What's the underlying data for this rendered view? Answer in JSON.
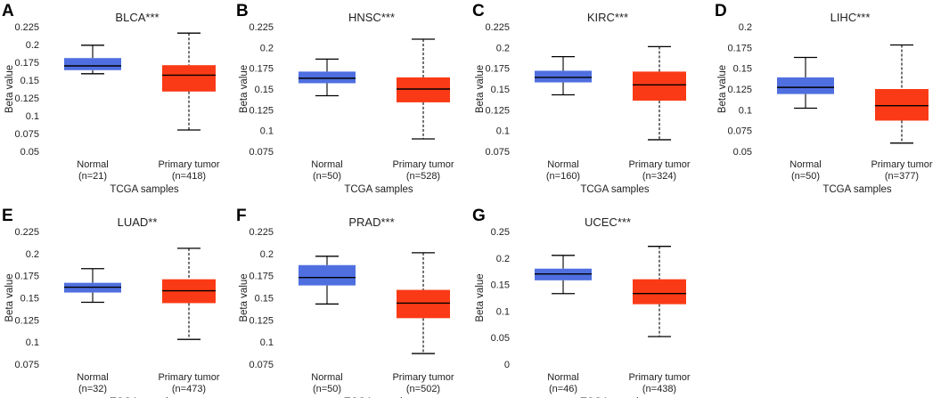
{
  "chart_data": [
    {
      "letter": "A",
      "type": "boxplot",
      "title": "BLCA***",
      "ylabel": "Beta value",
      "xlabel": "TCGA samples",
      "yticks": [
        "0.05",
        "0.075",
        "0.1",
        "0.125",
        "0.15",
        "0.175",
        "0.2",
        "0.225"
      ],
      "ylim": [
        0.05,
        0.225
      ],
      "groups": [
        {
          "name": "Normal",
          "n": "(n=21)",
          "color": "#4f6fe0",
          "min": 0.159,
          "q1": 0.164,
          "median": 0.17,
          "q3": 0.181,
          "max": 0.199
        },
        {
          "name": "Primary tumor",
          "n": "(n=418)",
          "color": "#fa3a16",
          "min": 0.08,
          "q1": 0.134,
          "median": 0.157,
          "q3": 0.171,
          "max": 0.216
        }
      ]
    },
    {
      "letter": "B",
      "type": "boxplot",
      "title": "HNSC***",
      "ylabel": "Beta value",
      "xlabel": "TCGA samples",
      "yticks": [
        "0.075",
        "0.1",
        "0.125",
        "0.15",
        "0.175",
        "0.2",
        "0.225"
      ],
      "ylim": [
        0.075,
        0.225
      ],
      "groups": [
        {
          "name": "Normal",
          "n": "(n=50)",
          "color": "#4f6fe0",
          "min": 0.142,
          "q1": 0.157,
          "median": 0.163,
          "q3": 0.171,
          "max": 0.186
        },
        {
          "name": "Primary tumor",
          "n": "(n=528)",
          "color": "#fa3a16",
          "min": 0.09,
          "q1": 0.134,
          "median": 0.15,
          "q3": 0.164,
          "max": 0.21
        }
      ]
    },
    {
      "letter": "C",
      "type": "boxplot",
      "title": "KIRC***",
      "ylabel": "Beta value",
      "xlabel": "TCGA samples",
      "yticks": [
        "0.075",
        "0.1",
        "0.125",
        "0.15",
        "0.175",
        "0.2",
        "0.225"
      ],
      "ylim": [
        0.075,
        0.225
      ],
      "groups": [
        {
          "name": "Normal",
          "n": "(n=160)",
          "color": "#4f6fe0",
          "min": 0.143,
          "q1": 0.158,
          "median": 0.164,
          "q3": 0.172,
          "max": 0.189
        },
        {
          "name": "Primary tumor",
          "n": "(n=324)",
          "color": "#fa3a16",
          "min": 0.089,
          "q1": 0.136,
          "median": 0.155,
          "q3": 0.171,
          "max": 0.201
        }
      ]
    },
    {
      "letter": "D",
      "type": "boxplot",
      "title": "LIHC***",
      "ylabel": "Beta value",
      "xlabel": "TCGA samples",
      "yticks": [
        "0.05",
        "0.075",
        "0.1",
        "0.125",
        "0.15",
        "0.175",
        "0.2"
      ],
      "ylim": [
        0.05,
        0.2
      ],
      "groups": [
        {
          "name": "Normal",
          "n": "(n=50)",
          "color": "#4f6fe0",
          "min": 0.102,
          "q1": 0.119,
          "median": 0.127,
          "q3": 0.139,
          "max": 0.163
        },
        {
          "name": "Primary tumor",
          "n": "(n=377)",
          "color": "#fa3a16",
          "min": 0.06,
          "q1": 0.087,
          "median": 0.105,
          "q3": 0.125,
          "max": 0.178
        }
      ]
    },
    {
      "letter": "E",
      "type": "boxplot",
      "title": "LUAD**",
      "ylabel": "Beta value",
      "xlabel": "TCGA samples",
      "yticks": [
        "0.075",
        "0.1",
        "0.125",
        "0.15",
        "0.175",
        "0.2",
        "0.225"
      ],
      "ylim": [
        0.075,
        0.225
      ],
      "groups": [
        {
          "name": "Normal",
          "n": "(n=32)",
          "color": "#4f6fe0",
          "min": 0.145,
          "q1": 0.156,
          "median": 0.162,
          "q3": 0.167,
          "max": 0.183
        },
        {
          "name": "Primary tumor",
          "n": "(n=473)",
          "color": "#fa3a16",
          "min": 0.103,
          "q1": 0.144,
          "median": 0.158,
          "q3": 0.171,
          "max": 0.206
        }
      ]
    },
    {
      "letter": "F",
      "type": "boxplot",
      "title": "PRAD***",
      "ylabel": "Beta value",
      "xlabel": "TCGA samples",
      "yticks": [
        "0.075",
        "0.1",
        "0.125",
        "0.15",
        "0.175",
        "0.2",
        "0.225"
      ],
      "ylim": [
        0.075,
        0.225
      ],
      "groups": [
        {
          "name": "Normal",
          "n": "(n=50)",
          "color": "#4f6fe0",
          "min": 0.143,
          "q1": 0.164,
          "median": 0.173,
          "q3": 0.187,
          "max": 0.197
        },
        {
          "name": "Primary tumor",
          "n": "(n=502)",
          "color": "#fa3a16",
          "min": 0.087,
          "q1": 0.127,
          "median": 0.144,
          "q3": 0.159,
          "max": 0.201
        }
      ]
    },
    {
      "letter": "G",
      "type": "boxplot",
      "title": "UCEC***",
      "ylabel": "Beta value",
      "xlabel": "TCGA samples",
      "yticks": [
        "0",
        "0.05",
        "0.1",
        "0.15",
        "0.2",
        "0.25"
      ],
      "ylim": [
        0,
        0.25
      ],
      "groups": [
        {
          "name": "Normal",
          "n": "(n=46)",
          "color": "#4f6fe0",
          "min": 0.133,
          "q1": 0.158,
          "median": 0.17,
          "q3": 0.18,
          "max": 0.205
        },
        {
          "name": "Primary tumor",
          "n": "(n=438)",
          "color": "#fa3a16",
          "min": 0.052,
          "q1": 0.113,
          "median": 0.133,
          "q3": 0.16,
          "max": 0.222
        }
      ]
    }
  ]
}
